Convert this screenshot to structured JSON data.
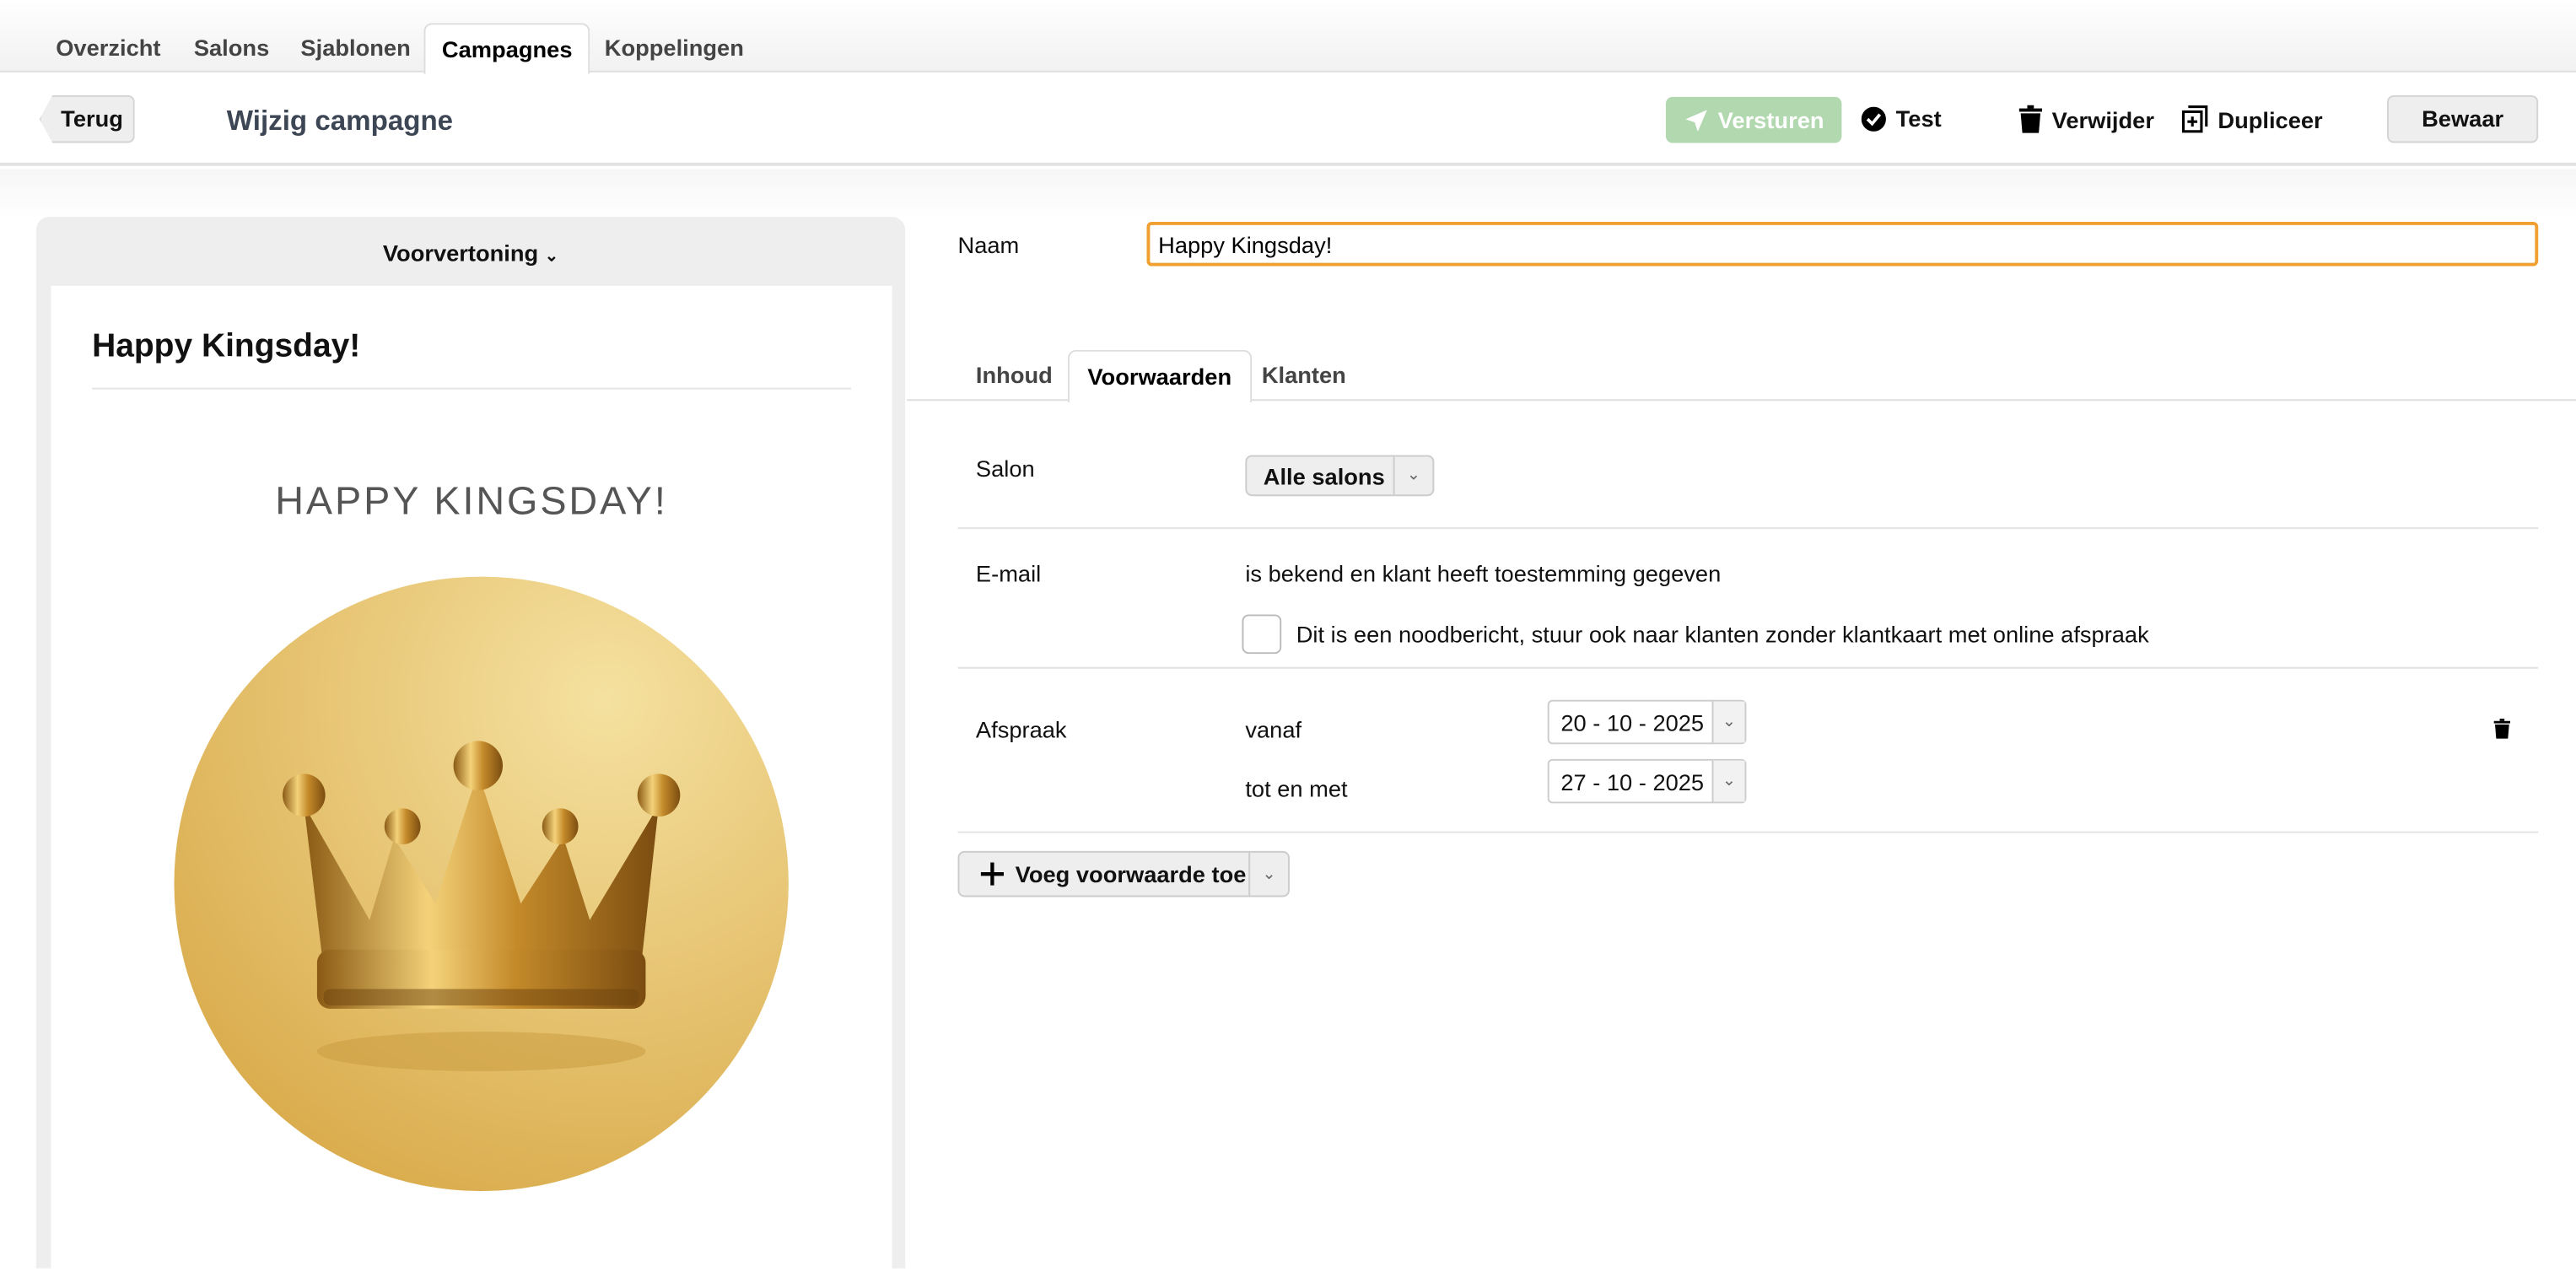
{
  "nav": {
    "tabs": [
      {
        "label": "Overzicht"
      },
      {
        "label": "Salons"
      },
      {
        "label": "Sjablonen"
      },
      {
        "label": "Campagnes",
        "active": true
      },
      {
        "label": "Koppelingen"
      }
    ]
  },
  "header": {
    "back_label": "Terug",
    "title": "Wijzig campagne",
    "send_label": "Versturen",
    "test_label": "Test",
    "delete_label": "Verwijder",
    "duplicate_label": "Dupliceer",
    "save_label": "Bewaar"
  },
  "colors": {
    "send_button": "#b2d8b0",
    "input_focus": "#f0a030",
    "title": "#3d4654"
  },
  "preview": {
    "toggle_label": "Voorvertoning",
    "subject": "Happy Kingsday!",
    "heading": "HAPPY KINGSDAY!",
    "image": "gold-crown"
  },
  "form": {
    "name_label": "Naam",
    "name_value": "Happy Kingsday!"
  },
  "subtabs": [
    {
      "label": "Inhoud"
    },
    {
      "label": "Voorwaarden",
      "active": true
    },
    {
      "label": "Klanten"
    }
  ],
  "conditions": {
    "salon_label": "Salon",
    "salon_value": "Alle salons",
    "email_label": "E-mail",
    "email_text": "is bekend en klant heeft toestemming gegeven",
    "emergency_label": "Dit is een noodbericht, stuur ook naar klanten zonder klantkaart met online afspraak",
    "emergency_checked": false,
    "appointment_label": "Afspraak",
    "from_label": "vanaf",
    "from_value": "20 - 10 - 2025",
    "to_label": "tot en met",
    "to_value": "27 - 10 - 2025",
    "add_label": "Voeg voorwaarde toe"
  }
}
